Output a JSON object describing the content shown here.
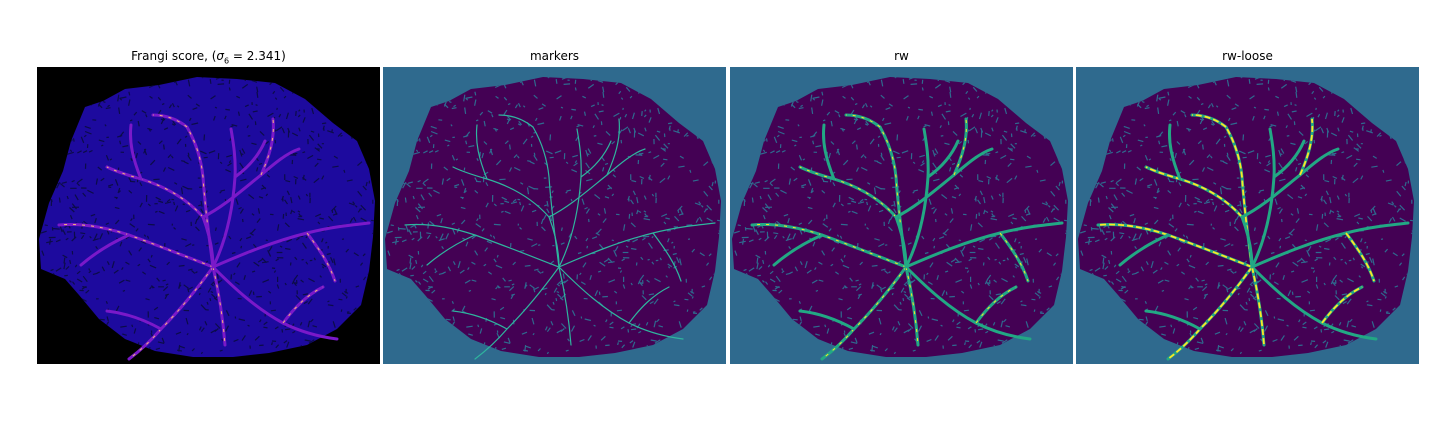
{
  "figure": {
    "panels": [
      {
        "id": "frangi",
        "title_prefix": "Frangi score, (",
        "title_symbol": "σ",
        "title_sub": "6",
        "title_suffix": " = 2.341)",
        "background": "#000000",
        "blob_color": "#1d0a9e",
        "texture_color": "#0c0c48",
        "vessel_color": "#7a19c9",
        "highlight_color": "#f2b47a"
      },
      {
        "id": "markers",
        "title": "markers",
        "background": "#2f6a8e",
        "blob_color": "#440154",
        "texture_color": "#2f6a8e",
        "vessel_color": "#2fb59e",
        "highlight_color": "#2fb59e"
      },
      {
        "id": "rw",
        "title": "rw",
        "background": "#2f6a8e",
        "blob_color": "#440154",
        "texture_color": "#2f6a8e",
        "vessel_color": "#22a884",
        "highlight_color": "#fde725"
      },
      {
        "id": "rw-loose",
        "title": "rw-loose",
        "background": "#2f6a8e",
        "blob_color": "#440154",
        "texture_color": "#2f6a8e",
        "vessel_color": "#22a884",
        "highlight_color": "#fde725"
      }
    ]
  }
}
